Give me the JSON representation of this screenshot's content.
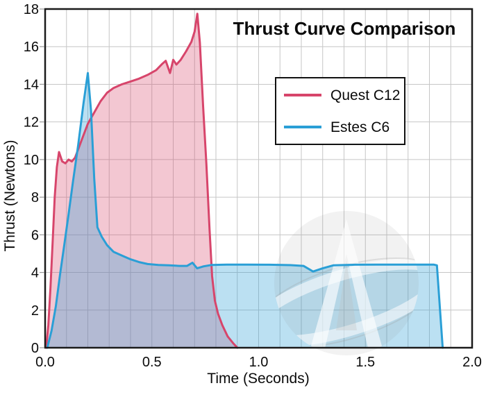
{
  "chart_data": {
    "type": "area",
    "title": "Thrust Curve Comparison",
    "xlabel": "Time (Seconds)",
    "ylabel": "Thrust (Newtons)",
    "xlim": [
      0,
      2
    ],
    "ylim": [
      0,
      18
    ],
    "x_major_ticks": [
      0,
      0.5,
      1,
      1.5,
      2
    ],
    "x_major_labels": [
      "0.0",
      "0.5",
      "1.0",
      "1.5",
      "2.0"
    ],
    "y_major_ticks": [
      0,
      2,
      4,
      6,
      8,
      10,
      12,
      14,
      16,
      18
    ],
    "x_grid_step": 0.1,
    "y_grid_step": 2,
    "grid": true,
    "grid_color": "#c6c6c6",
    "axis_color": "#1a1a1a",
    "legend_position": "upper-right-inside",
    "watermark": "rocket-logo-watermark",
    "series": [
      {
        "name": "Quest C12",
        "line_color": "#d7456b",
        "fill_color": "rgba(215,69,107,0.30)",
        "points": [
          [
            0.005,
            0
          ],
          [
            0.015,
            1.2
          ],
          [
            0.025,
            3.2
          ],
          [
            0.035,
            5.6
          ],
          [
            0.045,
            8.0
          ],
          [
            0.055,
            9.6
          ],
          [
            0.065,
            10.4
          ],
          [
            0.08,
            9.9
          ],
          [
            0.095,
            9.8
          ],
          [
            0.11,
            10.0
          ],
          [
            0.125,
            9.9
          ],
          [
            0.14,
            10.1
          ],
          [
            0.16,
            10.7
          ],
          [
            0.18,
            11.3
          ],
          [
            0.2,
            11.9
          ],
          [
            0.23,
            12.5
          ],
          [
            0.26,
            13.1
          ],
          [
            0.29,
            13.55
          ],
          [
            0.32,
            13.8
          ],
          [
            0.36,
            14.0
          ],
          [
            0.4,
            14.15
          ],
          [
            0.44,
            14.3
          ],
          [
            0.48,
            14.5
          ],
          [
            0.52,
            14.75
          ],
          [
            0.55,
            15.1
          ],
          [
            0.565,
            15.25
          ],
          [
            0.585,
            14.6
          ],
          [
            0.6,
            15.3
          ],
          [
            0.615,
            15.05
          ],
          [
            0.635,
            15.3
          ],
          [
            0.66,
            15.75
          ],
          [
            0.685,
            16.25
          ],
          [
            0.7,
            16.8
          ],
          [
            0.713,
            17.75
          ],
          [
            0.725,
            16.2
          ],
          [
            0.74,
            12.8
          ],
          [
            0.755,
            9.8
          ],
          [
            0.77,
            6.3
          ],
          [
            0.782,
            3.8
          ],
          [
            0.795,
            2.5
          ],
          [
            0.81,
            1.8
          ],
          [
            0.83,
            1.2
          ],
          [
            0.855,
            0.6
          ],
          [
            0.88,
            0.25
          ],
          [
            0.9,
            0
          ]
        ]
      },
      {
        "name": "Estes C6",
        "line_color": "#2a9fd6",
        "fill_color": "rgba(42,159,214,0.32)",
        "points": [
          [
            0.01,
            0
          ],
          [
            0.03,
            0.9
          ],
          [
            0.05,
            2.2
          ],
          [
            0.07,
            3.9
          ],
          [
            0.09,
            5.5
          ],
          [
            0.11,
            7.1
          ],
          [
            0.13,
            8.8
          ],
          [
            0.155,
            10.8
          ],
          [
            0.18,
            13.0
          ],
          [
            0.2,
            14.6
          ],
          [
            0.215,
            12.6
          ],
          [
            0.23,
            9.0
          ],
          [
            0.245,
            6.4
          ],
          [
            0.265,
            5.9
          ],
          [
            0.29,
            5.45
          ],
          [
            0.32,
            5.1
          ],
          [
            0.36,
            4.9
          ],
          [
            0.4,
            4.7
          ],
          [
            0.44,
            4.55
          ],
          [
            0.48,
            4.45
          ],
          [
            0.53,
            4.4
          ],
          [
            0.58,
            4.38
          ],
          [
            0.63,
            4.35
          ],
          [
            0.665,
            4.35
          ],
          [
            0.69,
            4.52
          ],
          [
            0.712,
            4.22
          ],
          [
            0.74,
            4.32
          ],
          [
            0.78,
            4.4
          ],
          [
            0.85,
            4.42
          ],
          [
            0.95,
            4.42
          ],
          [
            1.05,
            4.41
          ],
          [
            1.15,
            4.39
          ],
          [
            1.21,
            4.35
          ],
          [
            1.255,
            4.05
          ],
          [
            1.3,
            4.22
          ],
          [
            1.35,
            4.38
          ],
          [
            1.45,
            4.41
          ],
          [
            1.55,
            4.42
          ],
          [
            1.65,
            4.42
          ],
          [
            1.75,
            4.42
          ],
          [
            1.82,
            4.42
          ],
          [
            1.835,
            4.38
          ],
          [
            1.862,
            0
          ]
        ]
      }
    ]
  }
}
